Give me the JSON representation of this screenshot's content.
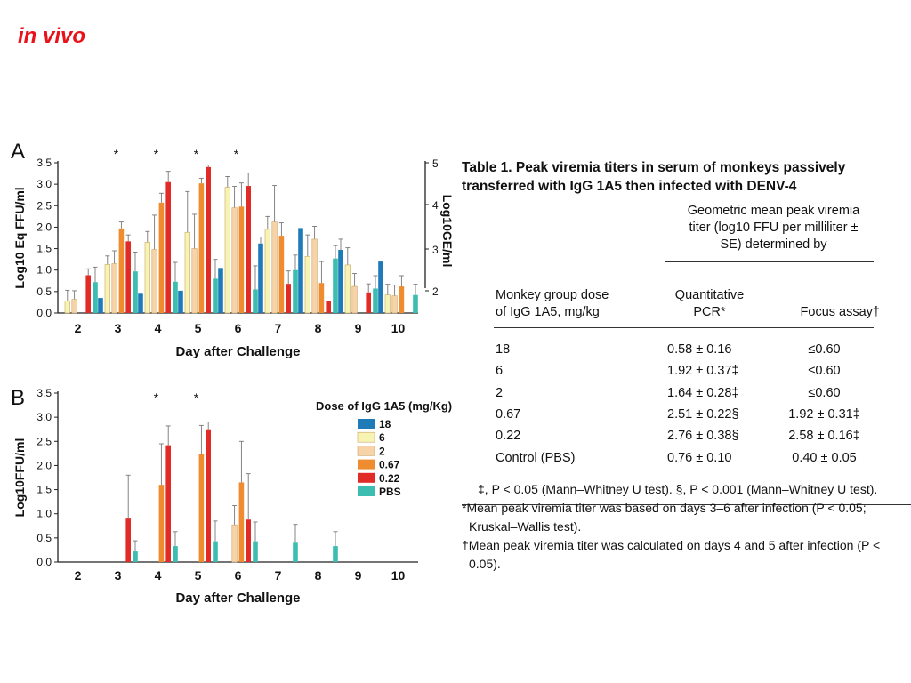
{
  "slide_title": "in vivo",
  "chart_data": [
    {
      "type": "bar",
      "panel": "A",
      "categories": [
        "2",
        "3",
        "4",
        "5",
        "6",
        "7",
        "8",
        "9",
        "10"
      ],
      "xlabel": "Day after Challenge",
      "ylabel": "Log10 Eq FFU/ml",
      "y2label": "Log10GE/ml",
      "ylim": [
        0,
        3.5
      ],
      "yticks": [
        "0.0",
        "0.5",
        "1.0",
        "1.5",
        "2.0",
        "2.5",
        "3.0",
        "3.5"
      ],
      "y2ticks": [
        "2",
        "3",
        "4",
        "5"
      ],
      "significance": [
        "3",
        "4",
        "5",
        "6"
      ],
      "series": [
        {
          "name": "18",
          "color": "#1f7bb8",
          "values": [
            null,
            0.35,
            0.45,
            0.52,
            1.05,
            1.62,
            1.98,
            1.47,
            1.2
          ],
          "errors": [
            null,
            0.0,
            0.0,
            0.0,
            0.0,
            0.15,
            0.0,
            0.25,
            0.0
          ]
        },
        {
          "name": "6",
          "color": "#f7f3b2",
          "values": [
            0.28,
            1.13,
            1.65,
            1.88,
            2.93,
            1.95,
            1.32,
            1.12,
            0.42
          ],
          "errors": [
            0.25,
            0.2,
            0.25,
            0.95,
            0.25,
            0.3,
            0.5,
            0.4,
            0.25
          ]
        },
        {
          "name": "2",
          "color": "#f7d3a8",
          "values": [
            0.32,
            1.15,
            1.48,
            1.5,
            2.45,
            2.12,
            1.72,
            0.62,
            0.4
          ],
          "errors": [
            0.2,
            0.3,
            0.8,
            0.8,
            0.5,
            0.85,
            0.3,
            0.3,
            0.25
          ]
        },
        {
          "name": "0.67",
          "color": "#ee8c2f",
          "values": [
            null,
            1.97,
            2.57,
            3.02,
            2.48,
            1.8,
            0.7,
            null,
            0.62
          ],
          "errors": [
            null,
            0.15,
            0.22,
            0.12,
            0.55,
            0.3,
            0.5,
            null,
            0.25
          ]
        },
        {
          "name": "0.22",
          "color": "#e02b27",
          "values": [
            0.88,
            1.67,
            3.05,
            3.4,
            2.96,
            0.68,
            0.27,
            0.48,
            null
          ],
          "errors": [
            0.15,
            0.15,
            0.25,
            0.05,
            0.3,
            0.3,
            0.0,
            0.2,
            null
          ]
        },
        {
          "name": "PBS",
          "color": "#3cbdb2",
          "values": [
            0.72,
            0.97,
            0.73,
            0.8,
            0.55,
            1.0,
            1.27,
            0.57,
            0.42
          ],
          "errors": [
            0.35,
            0.45,
            0.45,
            0.45,
            0.55,
            0.35,
            0.3,
            0.3,
            0.25
          ]
        }
      ]
    },
    {
      "type": "bar",
      "panel": "B",
      "categories": [
        "2",
        "3",
        "4",
        "5",
        "6",
        "7",
        "8",
        "9",
        "10"
      ],
      "xlabel": "Day after Challenge",
      "ylabel": "Log10FFU/ml",
      "ylim": [
        0,
        3.5
      ],
      "yticks": [
        "0.0",
        "0.5",
        "1.0",
        "1.5",
        "2.0",
        "2.5",
        "3.0",
        "3.5"
      ],
      "significance": [
        "4",
        "5"
      ],
      "legend_title": "Dose of IgG 1A5 (mg/Kg)",
      "legend_position": "right",
      "series": [
        {
          "name": "18",
          "color": "#1f7bb8",
          "values": [
            null,
            null,
            null,
            null,
            null,
            null,
            null,
            null,
            null
          ],
          "errors": [
            null,
            null,
            null,
            null,
            null,
            null,
            null,
            null,
            null
          ]
        },
        {
          "name": "6",
          "color": "#f7f3b2",
          "values": [
            null,
            null,
            null,
            null,
            null,
            null,
            null,
            null,
            null
          ],
          "errors": [
            null,
            null,
            null,
            null,
            null,
            null,
            null,
            null,
            null
          ]
        },
        {
          "name": "2",
          "color": "#f7d3a8",
          "values": [
            null,
            null,
            null,
            null,
            0.77,
            null,
            null,
            null,
            null
          ],
          "errors": [
            null,
            null,
            null,
            null,
            0.4,
            null,
            null,
            null,
            null
          ]
        },
        {
          "name": "0.67",
          "color": "#ee8c2f",
          "values": [
            null,
            null,
            1.6,
            2.23,
            1.65,
            null,
            null,
            null,
            null
          ],
          "errors": [
            null,
            null,
            0.85,
            0.6,
            0.85,
            null,
            null,
            null,
            null
          ]
        },
        {
          "name": "0.22",
          "color": "#e02b27",
          "values": [
            null,
            0.9,
            2.42,
            2.75,
            0.88,
            null,
            null,
            null,
            null
          ],
          "errors": [
            null,
            0.9,
            0.4,
            0.15,
            0.95,
            null,
            null,
            null,
            null
          ]
        },
        {
          "name": "PBS",
          "color": "#3cbdb2",
          "values": [
            null,
            0.22,
            0.33,
            0.43,
            0.43,
            0.4,
            0.33,
            null,
            null
          ],
          "errors": [
            null,
            0.22,
            0.3,
            0.42,
            0.4,
            0.38,
            0.3,
            null,
            null
          ]
        }
      ]
    }
  ],
  "table": {
    "title_line1": "Table 1. Peak viremia titers in serum of monkeys passively",
    "title_line2": "transferred with IgG 1A5 then infected with DENV-4",
    "span_header": [
      "Geometric mean peak viremia",
      "titer (log10 FFU per milliliter ±",
      "SE) determined by"
    ],
    "col1_header": [
      "Monkey group dose",
      "of IgG 1A5, mg/kg"
    ],
    "col2_header": [
      "Quantitative",
      "PCR*"
    ],
    "col3_header": "Focus assay†",
    "rows": [
      {
        "dose": "18",
        "pcr": "0.58 ± 0.16",
        "focus": "≤0.60"
      },
      {
        "dose": "6",
        "pcr": "1.92 ± 0.37‡",
        "focus": "≤0.60"
      },
      {
        "dose": "2",
        "pcr": "1.64 ± 0.28‡",
        "focus": "≤0.60"
      },
      {
        "dose": "0.67",
        "pcr": "2.51 ± 0.22§",
        "focus": "1.92 ± 0.31‡"
      },
      {
        "dose": "0.22",
        "pcr": "2.76 ± 0.38§",
        "focus": "2.58 ± 0.16‡"
      },
      {
        "dose": "Control (PBS)",
        "pcr": "0.76 ± 0.10",
        "focus": "0.40 ± 0.05"
      }
    ],
    "notes": [
      "‡, P < 0.05 (Mann–Whitney U test). §, P < 0.001 (Mann–Whitney U test).",
      "*Mean peak viremia titer was based on days 3–6 after infection (P < 0.05;",
      "Kruskal–Wallis test).",
      "†Mean peak viremia titer was calculated on days 4 and 5 after infection (P <",
      "0.05)."
    ]
  }
}
